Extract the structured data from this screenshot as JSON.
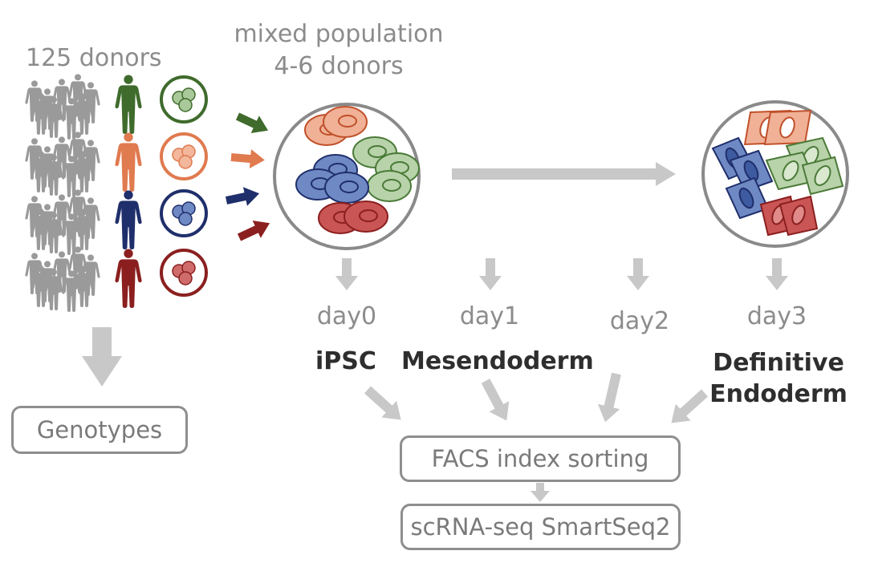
{
  "labels": {
    "donors": "125 donors",
    "mixed_line1": "mixed population",
    "mixed_line2": "4-6 donors"
  },
  "days": [
    "day0",
    "day1",
    "day2",
    "day3"
  ],
  "stages": {
    "ipsc": "iPSC",
    "mesendoderm": "Mesendoderm",
    "de_line1": "Definitive",
    "de_line2": "Endoderm"
  },
  "boxes": {
    "genotypes": "Genotypes",
    "facs": "FACS index sorting",
    "scrna": "scRNA-seq SmartSeq2"
  },
  "colors": {
    "green": "#3f6b2c",
    "orange": "#e07a4f",
    "blue": "#1f2f6b",
    "red": "#8b1f1f",
    "grey_arrow": "#c8c8c8",
    "grey_figure": "#9a9a9a"
  },
  "icons": [
    "human-figure-icon",
    "cell-cluster-icon",
    "colored-arrow-icon",
    "grey-arrow-icon"
  ]
}
